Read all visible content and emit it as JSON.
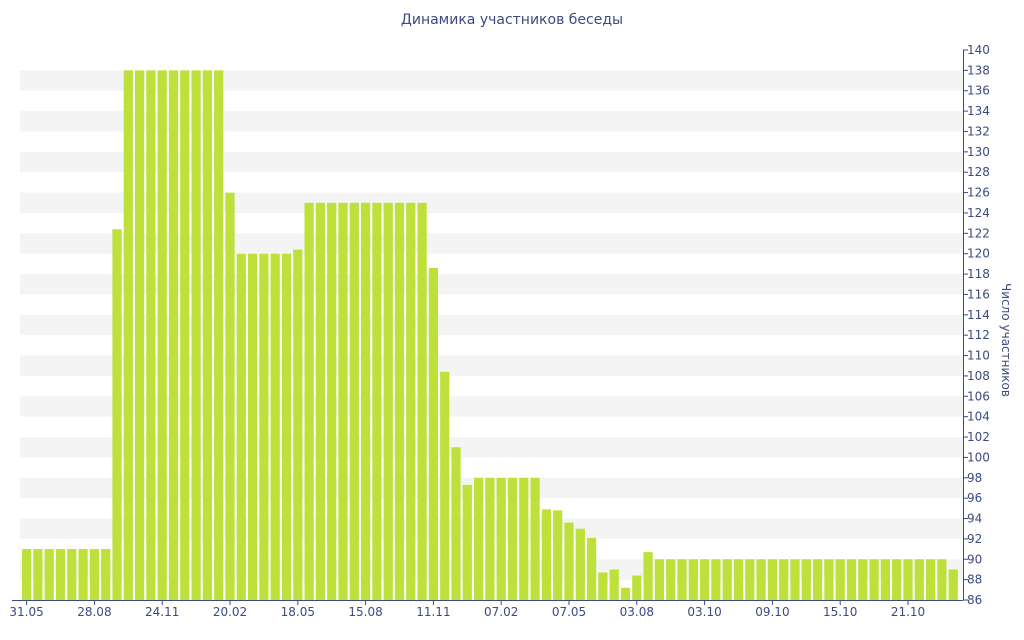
{
  "chart_data": {
    "type": "bar",
    "title": "Динамика участников беседы",
    "xlabel": "",
    "ylabel": "Число участников",
    "ylim": [
      86,
      140
    ],
    "y_ticks": [
      86,
      88,
      90,
      92,
      94,
      96,
      98,
      100,
      102,
      104,
      106,
      108,
      110,
      112,
      114,
      116,
      118,
      120,
      122,
      124,
      126,
      128,
      130,
      132,
      134,
      136,
      138,
      140
    ],
    "x_tick_labels": [
      {
        "label": "31.05",
        "index": 0
      },
      {
        "label": "28.08",
        "index": 6
      },
      {
        "label": "24.11",
        "index": 12
      },
      {
        "label": "20.02",
        "index": 18
      },
      {
        "label": "18.05",
        "index": 24
      },
      {
        "label": "15.08",
        "index": 30
      },
      {
        "label": "11.11",
        "index": 36
      },
      {
        "label": "07.02",
        "index": 42
      },
      {
        "label": "07.05",
        "index": 48
      },
      {
        "label": "03.08",
        "index": 54
      },
      {
        "label": "03.10",
        "index": 60
      },
      {
        "label": "09.10",
        "index": 66
      },
      {
        "label": "15.10",
        "index": 72
      },
      {
        "label": "21.10",
        "index": 78
      }
    ],
    "values": [
      91,
      91,
      91,
      91,
      91,
      91,
      91,
      91,
      122.4,
      138,
      138,
      138,
      138,
      138,
      138,
      138,
      138,
      138,
      126,
      120,
      120,
      120,
      120,
      120,
      120.4,
      125,
      125,
      125,
      125,
      125,
      125,
      125,
      125,
      125,
      125,
      125,
      118.6,
      108.4,
      101,
      97.3,
      98,
      98,
      98,
      98,
      98,
      98,
      94.9,
      94.8,
      93.6,
      93,
      92.1,
      88.7,
      89,
      87.2,
      88.4,
      90.7,
      90,
      90,
      90,
      90,
      90,
      90,
      90,
      90,
      90,
      90,
      90,
      90,
      90,
      90,
      90,
      90,
      90,
      90,
      90,
      90,
      90,
      90,
      90,
      90,
      90,
      90,
      89
    ],
    "grid": true,
    "colors": {
      "bar": "#bde03a",
      "grid_band": "#f4f4f4",
      "axis": "#3c4a82"
    }
  }
}
